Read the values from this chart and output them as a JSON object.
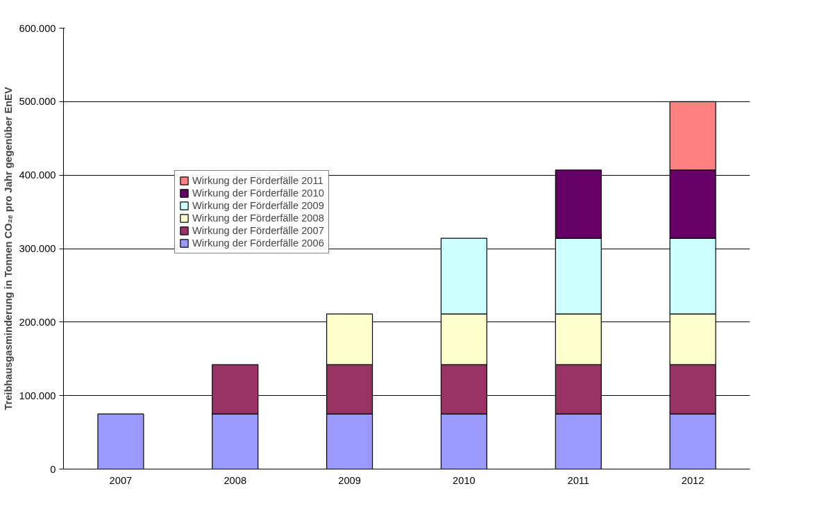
{
  "chart_data": {
    "type": "bar",
    "stacked": true,
    "ylabel": "Treibhausgasminderung in Tonnen CO₂ₑ pro Jahr gegenüber EnEV",
    "categories": [
      "2007",
      "2008",
      "2009",
      "2010",
      "2011",
      "2012"
    ],
    "series": [
      {
        "name": "Wirkung der Förderfälle 2006",
        "color": "#9999ff",
        "values": [
          75000,
          75000,
          75000,
          75000,
          75000,
          75000
        ]
      },
      {
        "name": "Wirkung der Förderfälle 2007",
        "color": "#993366",
        "values": [
          null,
          67000,
          67000,
          67000,
          67000,
          67000
        ]
      },
      {
        "name": "Wirkung der Förderfälle 2008",
        "color": "#ffffcc",
        "values": [
          null,
          null,
          69000,
          69000,
          69000,
          69000
        ]
      },
      {
        "name": "Wirkung der Förderfälle 2009",
        "color": "#ccffff",
        "values": [
          null,
          null,
          null,
          103000,
          103000,
          103000
        ]
      },
      {
        "name": "Wirkung der Förderfälle 2010",
        "color": "#660066",
        "values": [
          null,
          null,
          null,
          null,
          93000,
          93000
        ]
      },
      {
        "name": "Wirkung der Förderfälle 2011",
        "color": "#ff8080",
        "values": [
          null,
          null,
          null,
          null,
          null,
          93000
        ]
      }
    ],
    "ylim": [
      0,
      600000
    ],
    "yticks": [
      {
        "value": 0,
        "label": "0"
      },
      {
        "value": 100000,
        "label": "100.000"
      },
      {
        "value": 200000,
        "label": "200.000"
      },
      {
        "value": 300000,
        "label": "300.000"
      },
      {
        "value": 400000,
        "label": "400.000"
      },
      {
        "value": 500000,
        "label": "500.000"
      },
      {
        "value": 600000,
        "label": "600.000"
      }
    ],
    "grid": "y",
    "legend": "top left"
  }
}
